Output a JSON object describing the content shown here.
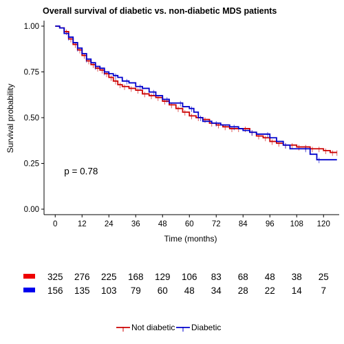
{
  "chart_data": {
    "type": "line",
    "subtype": "kaplan-meier",
    "title": "Overall survival of diabetic vs. non-diabetic MDS patients",
    "xlabel": "Time (months)",
    "ylabel": "Survival probability",
    "xlim": [
      -5,
      127
    ],
    "ylim": [
      -0.03,
      1.03
    ],
    "x_ticks": [
      0,
      12,
      24,
      36,
      48,
      60,
      72,
      84,
      96,
      108,
      120
    ],
    "x_tick_labels": [
      "0",
      "12",
      "24",
      "36",
      "48",
      "60",
      "72",
      "84",
      "96",
      "108",
      "120"
    ],
    "y_ticks": [
      0,
      0.25,
      0.5,
      0.75,
      1.0
    ],
    "y_tick_labels": [
      "0.00",
      "0.25",
      "0.50",
      "0.75",
      "1.00"
    ],
    "grid": false,
    "legend_position": "bottom",
    "annotation": "p = 0.78",
    "annotation_at": [
      4,
      0.19
    ],
    "series": [
      {
        "name": "Not diabetic",
        "color": "#cc0000",
        "points": [
          [
            0,
            1.0
          ],
          [
            2,
            0.99
          ],
          [
            4,
            0.97
          ],
          [
            6,
            0.93
          ],
          [
            8,
            0.9
          ],
          [
            10,
            0.87
          ],
          [
            12,
            0.84
          ],
          [
            14,
            0.81
          ],
          [
            16,
            0.79
          ],
          [
            18,
            0.77
          ],
          [
            20,
            0.76
          ],
          [
            22,
            0.74
          ],
          [
            24,
            0.72
          ],
          [
            26,
            0.7
          ],
          [
            28,
            0.68
          ],
          [
            30,
            0.67
          ],
          [
            33,
            0.66
          ],
          [
            36,
            0.65
          ],
          [
            39,
            0.63
          ],
          [
            42,
            0.62
          ],
          [
            45,
            0.61
          ],
          [
            48,
            0.59
          ],
          [
            51,
            0.57
          ],
          [
            54,
            0.55
          ],
          [
            57,
            0.53
          ],
          [
            60,
            0.51
          ],
          [
            63,
            0.5
          ],
          [
            66,
            0.49
          ],
          [
            69,
            0.47
          ],
          [
            72,
            0.46
          ],
          [
            75,
            0.45
          ],
          [
            78,
            0.44
          ],
          [
            81,
            0.44
          ],
          [
            84,
            0.44
          ],
          [
            87,
            0.42
          ],
          [
            90,
            0.4
          ],
          [
            93,
            0.39
          ],
          [
            96,
            0.37
          ],
          [
            99,
            0.36
          ],
          [
            102,
            0.35
          ],
          [
            105,
            0.35
          ],
          [
            108,
            0.34
          ],
          [
            111,
            0.34
          ],
          [
            114,
            0.33
          ],
          [
            117,
            0.33
          ],
          [
            120,
            0.32
          ],
          [
            123,
            0.31
          ],
          [
            126,
            0.31
          ]
        ],
        "censor_marks": [
          5,
          7,
          9,
          11,
          13,
          15,
          17,
          19,
          21,
          23,
          25,
          27,
          29,
          31,
          34,
          37,
          40,
          43,
          46,
          49,
          52,
          55,
          58,
          61,
          64,
          67,
          70,
          73,
          76,
          79,
          82,
          85,
          88,
          91,
          94,
          97,
          100,
          103,
          106,
          109,
          112,
          115,
          118,
          121,
          124,
          126
        ]
      },
      {
        "name": "Diabetic",
        "color": "#0000cc",
        "points": [
          [
            0,
            1.0
          ],
          [
            2,
            0.99
          ],
          [
            4,
            0.96
          ],
          [
            6,
            0.94
          ],
          [
            8,
            0.91
          ],
          [
            10,
            0.88
          ],
          [
            12,
            0.85
          ],
          [
            14,
            0.82
          ],
          [
            16,
            0.8
          ],
          [
            18,
            0.78
          ],
          [
            20,
            0.77
          ],
          [
            22,
            0.75
          ],
          [
            24,
            0.74
          ],
          [
            26,
            0.73
          ],
          [
            28,
            0.72
          ],
          [
            30,
            0.7
          ],
          [
            33,
            0.69
          ],
          [
            36,
            0.67
          ],
          [
            39,
            0.66
          ],
          [
            42,
            0.64
          ],
          [
            45,
            0.62
          ],
          [
            48,
            0.6
          ],
          [
            51,
            0.58
          ],
          [
            54,
            0.58
          ],
          [
            57,
            0.56
          ],
          [
            60,
            0.55
          ],
          [
            62,
            0.53
          ],
          [
            64,
            0.5
          ],
          [
            66,
            0.48
          ],
          [
            70,
            0.47
          ],
          [
            74,
            0.46
          ],
          [
            78,
            0.45
          ],
          [
            82,
            0.44
          ],
          [
            84,
            0.43
          ],
          [
            87,
            0.42
          ],
          [
            90,
            0.41
          ],
          [
            93,
            0.41
          ],
          [
            96,
            0.39
          ],
          [
            99,
            0.37
          ],
          [
            102,
            0.35
          ],
          [
            105,
            0.33
          ],
          [
            108,
            0.33
          ],
          [
            111,
            0.33
          ],
          [
            114,
            0.3
          ],
          [
            117,
            0.27
          ],
          [
            120,
            0.27
          ],
          [
            126,
            0.27
          ]
        ],
        "censor_marks": [
          6,
          10,
          14,
          18,
          22,
          27,
          32,
          38,
          44,
          50,
          56,
          61,
          65,
          72,
          80,
          88,
          95,
          103,
          112,
          118
        ]
      }
    ],
    "risk_table": {
      "times": [
        0,
        12,
        24,
        36,
        48,
        60,
        72,
        84,
        96,
        108,
        120
      ],
      "rows": [
        {
          "name": "Not diabetic",
          "color": "#ee0000",
          "counts": [
            325,
            276,
            225,
            168,
            129,
            106,
            83,
            68,
            48,
            38,
            25
          ]
        },
        {
          "name": "Diabetic",
          "color": "#0000ee",
          "counts": [
            156,
            135,
            103,
            79,
            60,
            48,
            34,
            28,
            22,
            14,
            7
          ]
        }
      ]
    }
  }
}
